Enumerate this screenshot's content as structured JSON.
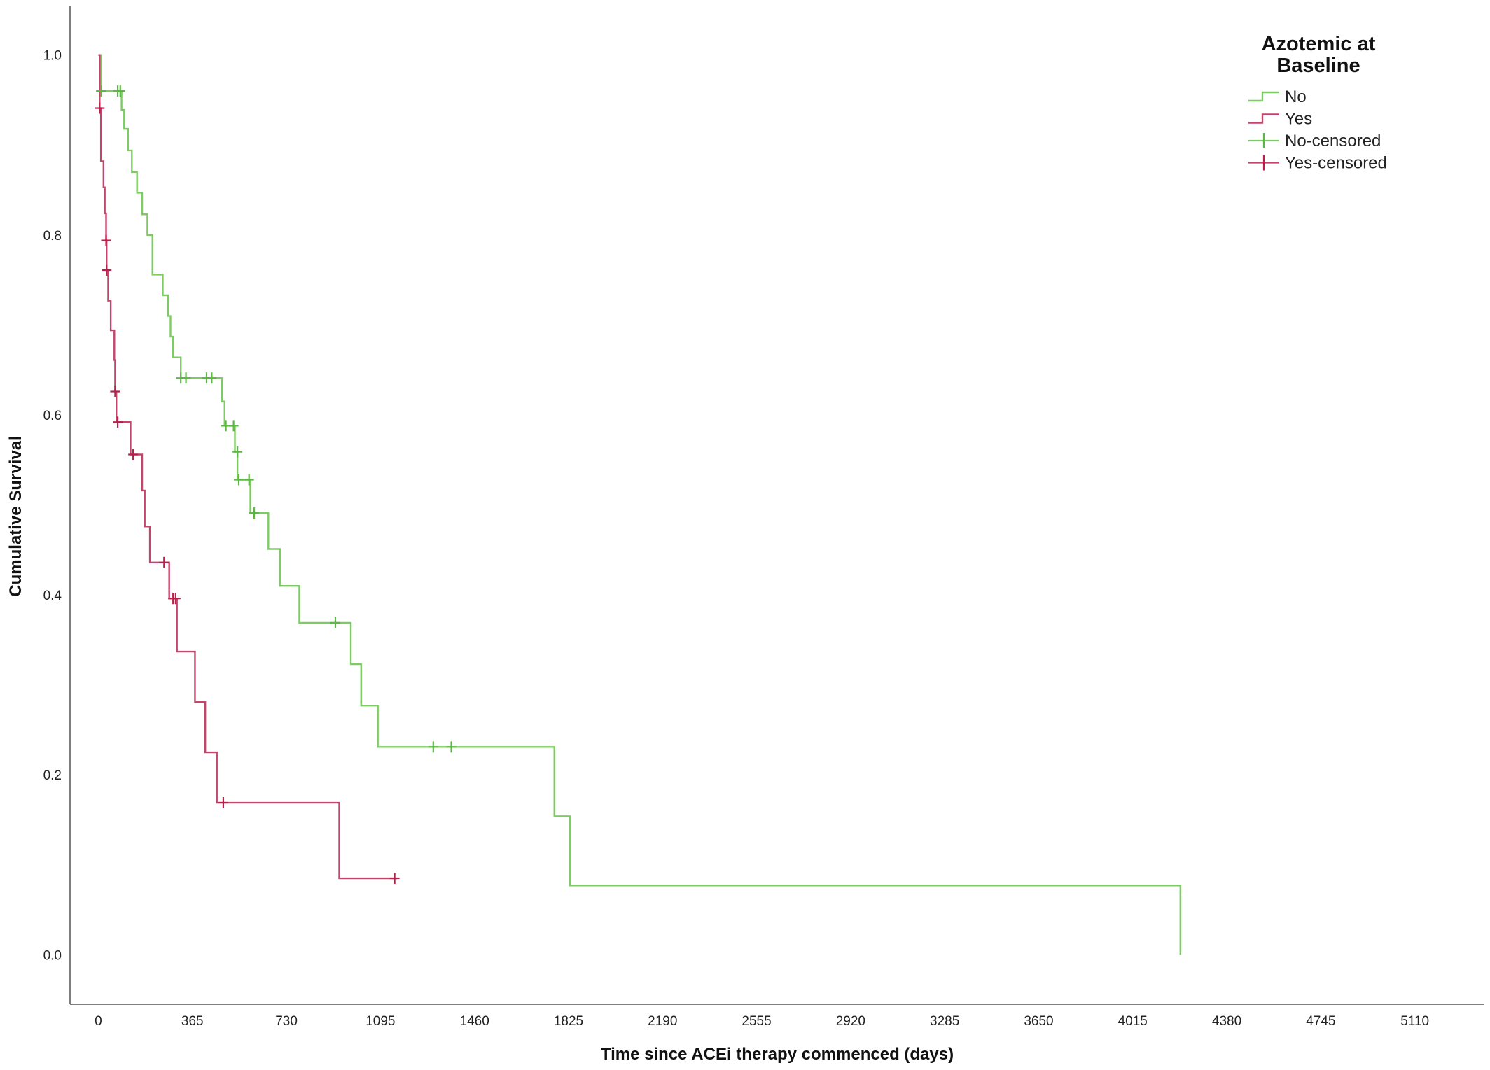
{
  "chart_data": {
    "type": "line",
    "subtype": "kaplan-meier-step",
    "title": "",
    "xlabel": "Time since ACEi therapy commenced (days)",
    "ylabel": "Cumulative Survival",
    "xlim": [
      -110,
      5380
    ],
    "ylim": [
      -0.055,
      1.055
    ],
    "x_ticks": [
      0,
      365,
      730,
      1095,
      1460,
      1825,
      2190,
      2555,
      2920,
      3285,
      3650,
      4015,
      4380,
      4745,
      5110
    ],
    "y_ticks": [
      0.0,
      0.2,
      0.4,
      0.6,
      0.8,
      1.0
    ],
    "y_tick_labels": [
      "0.0",
      "0.2",
      "0.4",
      "0.6",
      "0.8",
      "1.0"
    ],
    "grid": false,
    "legend": {
      "title_lines": [
        "Azotemic at",
        "Baseline"
      ],
      "placement": "top-right",
      "entries": [
        {
          "label": "No",
          "series": "No",
          "kind": "line"
        },
        {
          "label": "Yes",
          "series": "Yes",
          "kind": "line"
        },
        {
          "label": "No-censored",
          "series": "No",
          "kind": "censor"
        },
        {
          "label": "Yes-censored",
          "series": "Yes",
          "kind": "censor"
        }
      ]
    },
    "series": [
      {
        "name": "No",
        "color": "#7ccc63",
        "censor_color": "#5cb843",
        "steps": [
          [
            0,
            1.0
          ],
          [
            10,
            0.96
          ],
          [
            90,
            0.939
          ],
          [
            100,
            0.918
          ],
          [
            115,
            0.894
          ],
          [
            130,
            0.87
          ],
          [
            150,
            0.847
          ],
          [
            170,
            0.823
          ],
          [
            190,
            0.8
          ],
          [
            210,
            0.756
          ],
          [
            250,
            0.733
          ],
          [
            270,
            0.71
          ],
          [
            280,
            0.687
          ],
          [
            290,
            0.664
          ],
          [
            320,
            0.641
          ],
          [
            480,
            0.615
          ],
          [
            490,
            0.588
          ],
          [
            530,
            0.559
          ],
          [
            540,
            0.528
          ],
          [
            590,
            0.491
          ],
          [
            660,
            0.451
          ],
          [
            705,
            0.41
          ],
          [
            780,
            0.369
          ],
          [
            980,
            0.323
          ],
          [
            1020,
            0.277
          ],
          [
            1085,
            0.231
          ],
          [
            1770,
            0.154
          ],
          [
            1830,
            0.077
          ],
          [
            4200,
            0.0
          ]
        ],
        "end_x": 4200,
        "censored": [
          [
            10,
            0.96
          ],
          [
            75,
            0.96
          ],
          [
            85,
            0.96
          ],
          [
            320,
            0.641
          ],
          [
            340,
            0.641
          ],
          [
            420,
            0.641
          ],
          [
            440,
            0.641
          ],
          [
            495,
            0.588
          ],
          [
            525,
            0.588
          ],
          [
            540,
            0.559
          ],
          [
            545,
            0.528
          ],
          [
            585,
            0.528
          ],
          [
            605,
            0.491
          ],
          [
            920,
            0.369
          ],
          [
            1300,
            0.231
          ],
          [
            1370,
            0.231
          ]
        ]
      },
      {
        "name": "Yes",
        "color": "#c2456b",
        "censor_color": "#b81f4a",
        "steps": [
          [
            0,
            1.0
          ],
          [
            5,
            0.941
          ],
          [
            10,
            0.882
          ],
          [
            20,
            0.853
          ],
          [
            25,
            0.824
          ],
          [
            30,
            0.794
          ],
          [
            32,
            0.761
          ],
          [
            38,
            0.727
          ],
          [
            48,
            0.694
          ],
          [
            62,
            0.661
          ],
          [
            65,
            0.626
          ],
          [
            70,
            0.592
          ],
          [
            125,
            0.556
          ],
          [
            170,
            0.516
          ],
          [
            180,
            0.476
          ],
          [
            200,
            0.436
          ],
          [
            275,
            0.396
          ],
          [
            305,
            0.337
          ],
          [
            375,
            0.281
          ],
          [
            415,
            0.225
          ],
          [
            460,
            0.169
          ],
          [
            935,
            0.085
          ]
        ],
        "end_x": 1160,
        "censored": [
          [
            5,
            0.941
          ],
          [
            30,
            0.794
          ],
          [
            32,
            0.761
          ],
          [
            65,
            0.626
          ],
          [
            75,
            0.592
          ],
          [
            135,
            0.556
          ],
          [
            255,
            0.436
          ],
          [
            290,
            0.396
          ],
          [
            300,
            0.396
          ],
          [
            485,
            0.169
          ],
          [
            1150,
            0.085
          ]
        ]
      }
    ]
  }
}
